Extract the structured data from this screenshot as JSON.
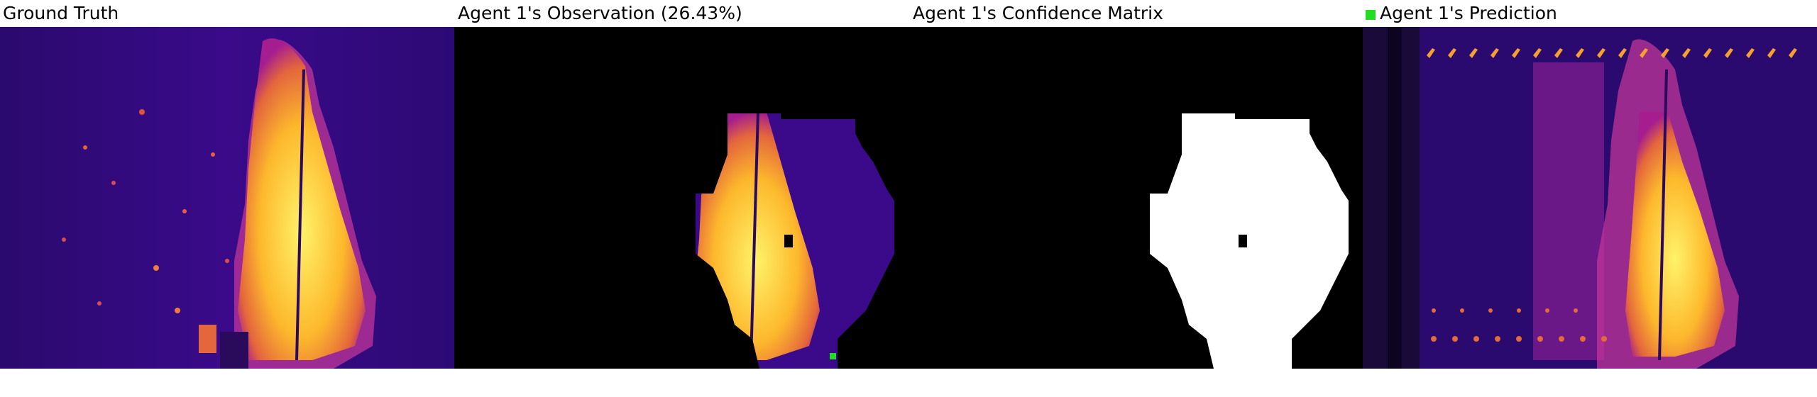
{
  "panels": [
    {
      "title": "Ground Truth"
    },
    {
      "title": "Agent 1's Observation (26.43%)"
    },
    {
      "title": "Agent 1's Confidence Matrix"
    },
    {
      "title": "Agent 1's Prediction"
    }
  ],
  "legend": {
    "marker_color": "#22dd22",
    "marker_icon": "green-square-icon"
  },
  "colors": {
    "colormap": [
      "#0d0887",
      "#5302a3",
      "#8b0aa5",
      "#b83289",
      "#db5c68",
      "#f48849",
      "#febd2a",
      "#f0f921"
    ]
  }
}
